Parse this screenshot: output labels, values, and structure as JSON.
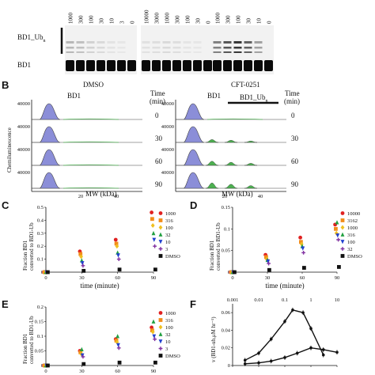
{
  "panel_a": {
    "label_ub": "BD1_Ub",
    "label_ub_sub": "n",
    "label_bd1": "BD1",
    "groups": [
      {
        "lanes": [
          "1000",
          "300",
          "100",
          "30",
          "10",
          "3",
          "0"
        ],
        "ub_intensity": [
          0.25,
          0.2,
          0.12,
          0.08,
          0.04,
          0.02,
          0
        ]
      },
      {
        "lanes": [
          "10000",
          "3000",
          "1000",
          "300",
          "100",
          "30",
          "0"
        ],
        "ub_intensity": [
          0.05,
          0.06,
          0.08,
          0.06,
          0.03,
          0.02,
          0
        ]
      },
      {
        "lanes": [
          "1000",
          "300",
          "100",
          "30",
          "10",
          "0"
        ],
        "ub_intensity": [
          0.5,
          0.7,
          0.85,
          0.65,
          0.35,
          0
        ]
      }
    ]
  },
  "panel_b": {
    "letter": "B",
    "ylabel": "Chemiluminescence",
    "xlabel": "MW (kDa)",
    "time_header": [
      "Time",
      "(min)"
    ],
    "left": {
      "title": "DMSO",
      "peak_label": "BD1"
    },
    "right": {
      "title": "CFT-0251",
      "peak_label": "BD1",
      "ub_label": "BD1_Ub",
      "ub_sub": "n"
    },
    "times": [
      "0",
      "30",
      "60",
      "90"
    ],
    "y_tick": "40000",
    "x_ticks": [
      "20",
      "40"
    ]
  },
  "chart_data": [
    {
      "panel": "C",
      "type": "scatter",
      "ylabel": "Fraction BD1 converted to BD1-Ub",
      "xlabel": "time (minute)",
      "x_ticks": [
        "0",
        "30",
        "60",
        "90"
      ],
      "y_ticks": [
        "0",
        "0.1",
        "0.2",
        "0.3",
        "0.4",
        "0.5"
      ],
      "ylim": [
        0,
        0.5
      ],
      "xlim": [
        0,
        90
      ],
      "series": [
        {
          "name": "1000",
          "color": "#e02020",
          "values": [
            [
              0,
              0
            ],
            [
              30,
              0.16
            ],
            [
              60,
              0.25
            ],
            [
              90,
              0.46
            ]
          ]
        },
        {
          "name": "316",
          "color": "#f28c1a",
          "values": [
            [
              0,
              0
            ],
            [
              30,
              0.14
            ],
            [
              60,
              0.22
            ],
            [
              90,
              0.41
            ]
          ]
        },
        {
          "name": "100",
          "color": "#f0c020",
          "values": [
            [
              0,
              0
            ],
            [
              30,
              0.12
            ],
            [
              60,
              0.2
            ],
            [
              90,
              0.36
            ]
          ]
        },
        {
          "name": "32",
          "color": "#20a040",
          "values": [
            [
              0,
              0
            ],
            [
              30,
              0.09
            ],
            [
              60,
              0.15
            ],
            [
              90,
              0.3
            ]
          ]
        },
        {
          "name": "10",
          "color": "#2040d0",
          "values": [
            [
              0,
              0
            ],
            [
              30,
              0.07
            ],
            [
              60,
              0.13
            ],
            [
              90,
              0.25
            ]
          ]
        },
        {
          "name": "3",
          "color": "#8030a0",
          "values": [
            [
              0,
              0
            ],
            [
              30,
              0.05
            ],
            [
              60,
              0.1
            ],
            [
              90,
              0.2
            ]
          ]
        },
        {
          "name": "DMSO",
          "color": "#111111",
          "values": [
            [
              0,
              0
            ],
            [
              30,
              0.01
            ],
            [
              60,
              0.02
            ],
            [
              90,
              0.02
            ]
          ]
        }
      ]
    },
    {
      "panel": "D",
      "type": "scatter",
      "ylabel": "Fraction BD1 converted to BD1-Ub",
      "xlabel": "time (minute)",
      "x_ticks": [
        "0",
        "30",
        "60",
        "90"
      ],
      "y_ticks": [
        "0",
        "0.05",
        "0.1",
        "0.15"
      ],
      "ylim": [
        0,
        0.15
      ],
      "xlim": [
        0,
        90
      ],
      "series": [
        {
          "name": "10000",
          "color": "#e02020",
          "values": [
            [
              0,
              0
            ],
            [
              30,
              0.04
            ],
            [
              60,
              0.08
            ],
            [
              90,
              0.11
            ]
          ]
        },
        {
          "name": "3162",
          "color": "#f28c1a",
          "values": [
            [
              0,
              0
            ],
            [
              30,
              0.035
            ],
            [
              60,
              0.07
            ],
            [
              90,
              0.1
            ]
          ]
        },
        {
          "name": "1000",
          "color": "#f0c020",
          "values": [
            [
              0,
              0
            ],
            [
              30,
              0.03
            ],
            [
              60,
              0.065
            ],
            [
              90,
              0.09
            ]
          ]
        },
        {
          "name": "316",
          "color": "#20a040",
          "values": [
            [
              0,
              0
            ],
            [
              30,
              0.028
            ],
            [
              60,
              0.06
            ],
            [
              90,
              0.115
            ]
          ]
        },
        {
          "name": "100",
          "color": "#2040d0",
          "values": [
            [
              0,
              0
            ],
            [
              30,
              0.025
            ],
            [
              60,
              0.055
            ],
            [
              90,
              0.085
            ]
          ]
        },
        {
          "name": "32",
          "color": "#8030a0",
          "values": [
            [
              0,
              0
            ],
            [
              30,
              0.02
            ],
            [
              60,
              0.045
            ],
            [
              90,
              0.075
            ]
          ]
        },
        {
          "name": "DMSO",
          "color": "#111111",
          "values": [
            [
              0,
              0
            ],
            [
              30,
              0.005
            ],
            [
              60,
              0.01
            ],
            [
              90,
              0.012
            ]
          ]
        }
      ]
    },
    {
      "panel": "E",
      "type": "scatter",
      "ylabel": "Fraction BD1 converted to BD1-Ub",
      "xlabel": "",
      "x_ticks": [
        "0",
        "30",
        "60",
        "90"
      ],
      "y_ticks": [
        "0",
        "0.05",
        "0.1",
        "0.15",
        "0.2"
      ],
      "ylim": [
        0,
        0.2
      ],
      "xlim": [
        0,
        90
      ],
      "series": [
        {
          "name": "1000",
          "color": "#e02020",
          "values": [
            [
              0,
              0
            ],
            [
              30,
              0.05
            ],
            [
              60,
              0.09
            ],
            [
              90,
              0.13
            ]
          ]
        },
        {
          "name": "316",
          "color": "#f28c1a",
          "values": [
            [
              0,
              0
            ],
            [
              30,
              0.045
            ],
            [
              60,
              0.085
            ],
            [
              90,
              0.12
            ]
          ]
        },
        {
          "name": "100",
          "color": "#f0c020",
          "values": [
            [
              0,
              0
            ],
            [
              30,
              0.04
            ],
            [
              60,
              0.08
            ],
            [
              90,
              0.115
            ]
          ]
        },
        {
          "name": "32",
          "color": "#20a040",
          "values": [
            [
              0,
              0
            ],
            [
              30,
              0.055
            ],
            [
              60,
              0.1
            ],
            [
              90,
              0.15
            ]
          ]
        },
        {
          "name": "10",
          "color": "#2040d0",
          "values": [
            [
              0,
              0
            ],
            [
              30,
              0.035
            ],
            [
              60,
              0.07
            ],
            [
              90,
              0.1
            ]
          ]
        },
        {
          "name": "3",
          "color": "#8030a0",
          "values": [
            [
              0,
              0
            ],
            [
              30,
              0.03
            ],
            [
              60,
              0.06
            ],
            [
              90,
              0.09
            ]
          ]
        },
        {
          "name": "DMSO",
          "color": "#111111",
          "values": [
            [
              0,
              0
            ],
            [
              30,
              0.005
            ],
            [
              60,
              0.01
            ],
            [
              90,
              0.01
            ]
          ]
        }
      ]
    },
    {
      "panel": "F",
      "type": "line",
      "ylabel": "v (BD1-ub,μM hr⁻¹)",
      "xlabel": "",
      "x_scale": "log",
      "x_ticks": [
        "0.001",
        "0.01",
        "0.1",
        "1",
        "10"
      ],
      "y_ticks": [
        "0",
        "0.02",
        "0.04",
        "0.06"
      ],
      "ylim": [
        0,
        0.07
      ],
      "xlim": [
        0.001,
        10
      ],
      "series": [
        {
          "color": "#111111",
          "values": [
            [
              0.003,
              0.006
            ],
            [
              0.01,
              0.014
            ],
            [
              0.03,
              0.03
            ],
            [
              0.1,
              0.05
            ],
            [
              0.2,
              0.063
            ],
            [
              0.5,
              0.06
            ],
            [
              1,
              0.042
            ],
            [
              3,
              0.012
            ]
          ]
        },
        {
          "color": "#111111",
          "values": [
            [
              0.003,
              0.002
            ],
            [
              0.01,
              0.003
            ],
            [
              0.03,
              0.005
            ],
            [
              0.1,
              0.009
            ],
            [
              0.3,
              0.014
            ],
            [
              1,
              0.02
            ],
            [
              3,
              0.018
            ],
            [
              10,
              0.015
            ]
          ]
        }
      ]
    }
  ]
}
